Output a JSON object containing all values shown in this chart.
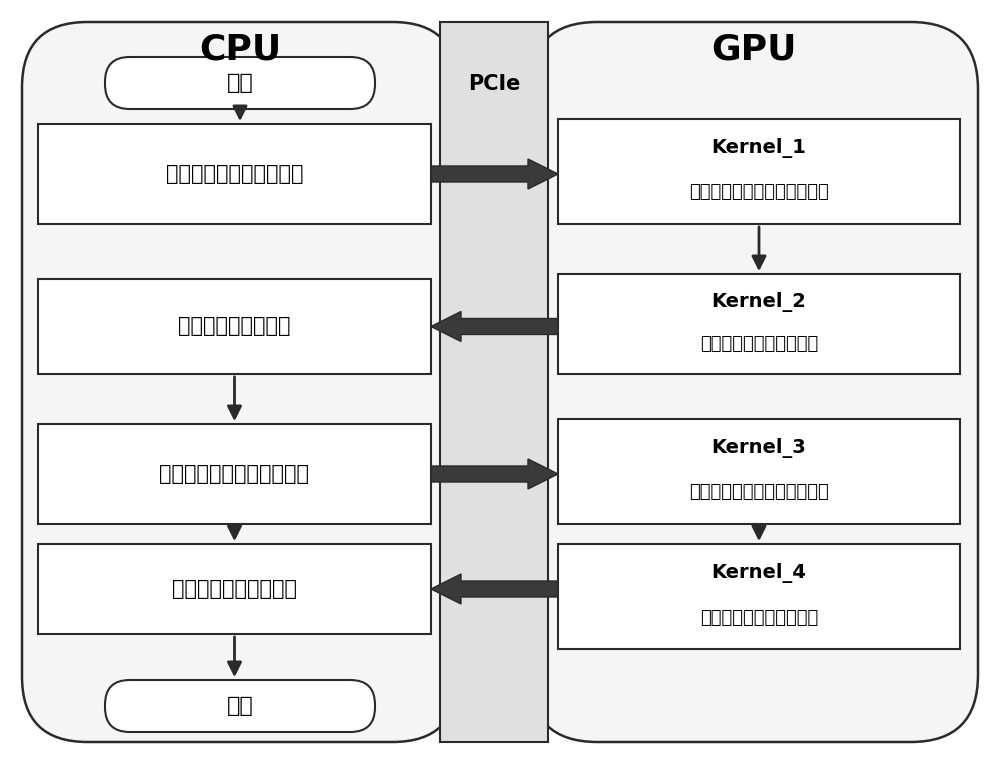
{
  "bg_color": "#ffffff",
  "cpu_label": "CPU",
  "gpu_label": "GPU",
  "pcie_label": "PCIe",
  "start_text": "开始",
  "end_text": "结束",
  "cpu_box1": "准备数据和支路开断信息",
  "cpu_box2": "处理支路开断的结果",
  "cpu_box3": "准备数据和发电机开断信息",
  "cpu_box4": "处理发电机开端的结果",
  "gpu_k1_title": "Kernel_1",
  "gpu_k1_text": "计算支路开断后节点电压相角",
  "gpu_k2_title": "Kernel_2",
  "gpu_k2_text": "检查有功功率过负荷状态",
  "gpu_k3_title": "Kernel_3",
  "gpu_k3_text": "计算发电断开后节点电压相角",
  "gpu_k4_title": "Kernel_4",
  "gpu_k4_text": "检查有功功率过负荷状态",
  "outer_fc": "#f5f5f5",
  "box_fc": "#ffffff",
  "ec_color": "#2a2a2a",
  "lw_outer": 1.8,
  "lw_inner": 1.5,
  "pcie_fc": "#e8e8e8"
}
